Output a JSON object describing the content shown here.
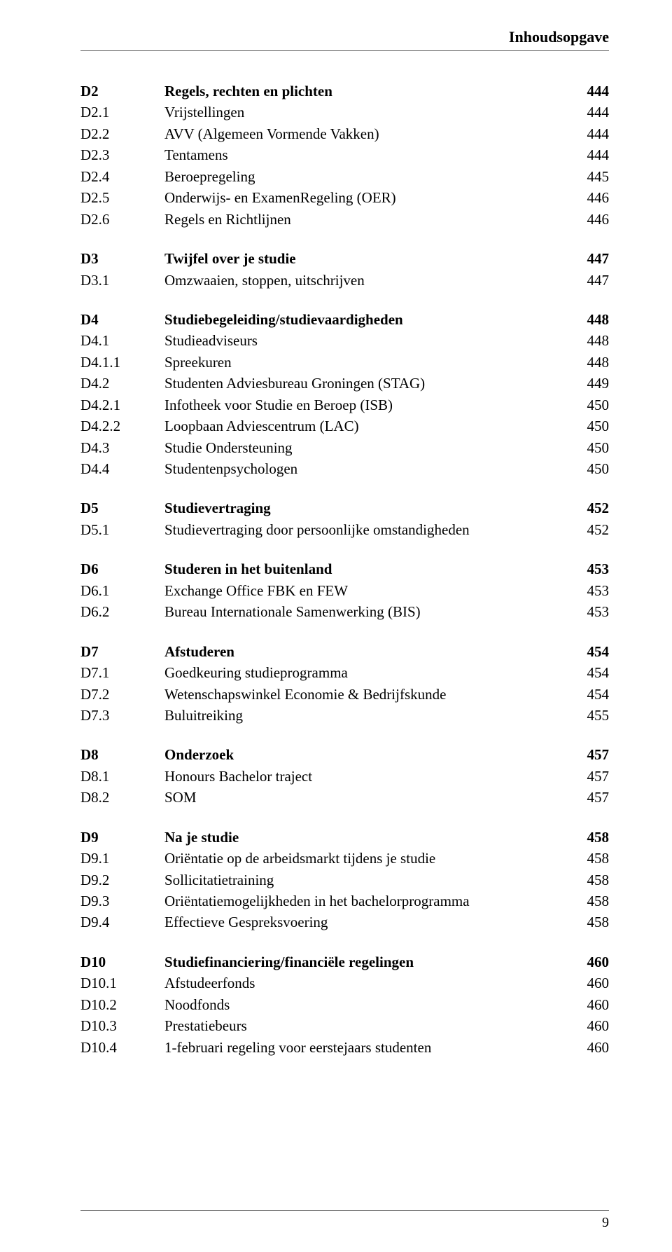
{
  "header": "Inhoudsopgave",
  "footer_page": "9",
  "sections": [
    {
      "id": "D2",
      "heading": {
        "code": "D2",
        "title": "Regels, rechten en plichten",
        "page": "444"
      },
      "items": [
        {
          "code": "D2.1",
          "title": "Vrijstellingen",
          "page": "444"
        },
        {
          "code": "D2.2",
          "title": "AVV (Algemeen Vormende Vakken)",
          "page": "444"
        },
        {
          "code": "D2.3",
          "title": "Tentamens",
          "page": "444"
        },
        {
          "code": "D2.4",
          "title": "Beroepregeling",
          "page": "445"
        },
        {
          "code": "D2.5",
          "title": "Onderwijs- en ExamenRegeling (OER)",
          "page": "446"
        },
        {
          "code": "D2.6",
          "title": "Regels en Richtlijnen",
          "page": "446"
        }
      ]
    },
    {
      "id": "D3",
      "heading": {
        "code": "D3",
        "title": "Twijfel over je studie",
        "page": "447"
      },
      "items": [
        {
          "code": "D3.1",
          "title": "Omzwaaien, stoppen, uitschrijven",
          "page": "447"
        }
      ]
    },
    {
      "id": "D4",
      "heading": {
        "code": "D4",
        "title": "Studiebegeleiding/studievaardigheden",
        "page": "448"
      },
      "items": [
        {
          "code": "D4.1",
          "title": "Studieadviseurs",
          "page": "448"
        },
        {
          "code": "D4.1.1",
          "title": "Spreekuren",
          "page": "448"
        },
        {
          "code": "D4.2",
          "title": "Studenten Adviesbureau Groningen (STAG)",
          "page": "449"
        },
        {
          "code": "D4.2.1",
          "title": "Infotheek voor Studie en Beroep (ISB)",
          "page": "450"
        },
        {
          "code": "D4.2.2",
          "title": "Loopbaan Adviescentrum (LAC)",
          "page": "450"
        },
        {
          "code": "D4.3",
          "title": "Studie Ondersteuning",
          "page": "450"
        },
        {
          "code": "D4.4",
          "title": "Studentenpsychologen",
          "page": "450"
        }
      ]
    },
    {
      "id": "D5",
      "heading": {
        "code": "D5",
        "title": "Studievertraging",
        "page": "452"
      },
      "items": [
        {
          "code": "D5.1",
          "title": "Studievertraging door persoonlijke omstandigheden",
          "page": "452"
        }
      ]
    },
    {
      "id": "D6",
      "heading": {
        "code": "D6",
        "title": "Studeren in het buitenland",
        "page": "453"
      },
      "items": [
        {
          "code": "D6.1",
          "title": "Exchange Office FBK en FEW",
          "page": "453"
        },
        {
          "code": "D6.2",
          "title": "Bureau Internationale Samenwerking (BIS)",
          "page": "453"
        }
      ]
    },
    {
      "id": "D7",
      "heading": {
        "code": "D7",
        "title": "Afstuderen",
        "page": "454"
      },
      "items": [
        {
          "code": "D7.1",
          "title": "Goedkeuring studieprogramma",
          "page": "454"
        },
        {
          "code": "D7.2",
          "title": "Wetenschapswinkel Economie & Bedrijfskunde",
          "page": "454"
        },
        {
          "code": "D7.3",
          "title": "Buluitreiking",
          "page": "455"
        }
      ]
    },
    {
      "id": "D8",
      "heading": {
        "code": "D8",
        "title": "Onderzoek",
        "page": "457"
      },
      "items": [
        {
          "code": "D8.1",
          "title": "Honours Bachelor traject",
          "page": "457"
        },
        {
          "code": "D8.2",
          "title": "SOM",
          "page": "457"
        }
      ]
    },
    {
      "id": "D9",
      "heading": {
        "code": "D9",
        "title": "Na je studie",
        "page": "458"
      },
      "items": [
        {
          "code": "D9.1",
          "title": "Oriëntatie op de arbeidsmarkt tijdens je studie",
          "page": "458"
        },
        {
          "code": "D9.2",
          "title": "Sollicitatietraining",
          "page": "458"
        },
        {
          "code": "D9.3",
          "title": "Oriëntatiemogelijkheden in het bachelorprogramma",
          "page": "458"
        },
        {
          "code": "D9.4",
          "title": "Effectieve Gespreksvoering",
          "page": "458"
        }
      ]
    },
    {
      "id": "D10",
      "heading": {
        "code": "D10",
        "title": "Studiefinanciering/financiële regelingen",
        "page": "460"
      },
      "items": [
        {
          "code": "D10.1",
          "title": "Afstudeerfonds",
          "page": "460"
        },
        {
          "code": "D10.2",
          "title": "Noodfonds",
          "page": "460"
        },
        {
          "code": "D10.3",
          "title": "Prestatiebeurs",
          "page": "460"
        },
        {
          "code": "D10.4",
          "title": "1-februari regeling voor eerstejaars studenten",
          "page": "460"
        }
      ]
    }
  ]
}
